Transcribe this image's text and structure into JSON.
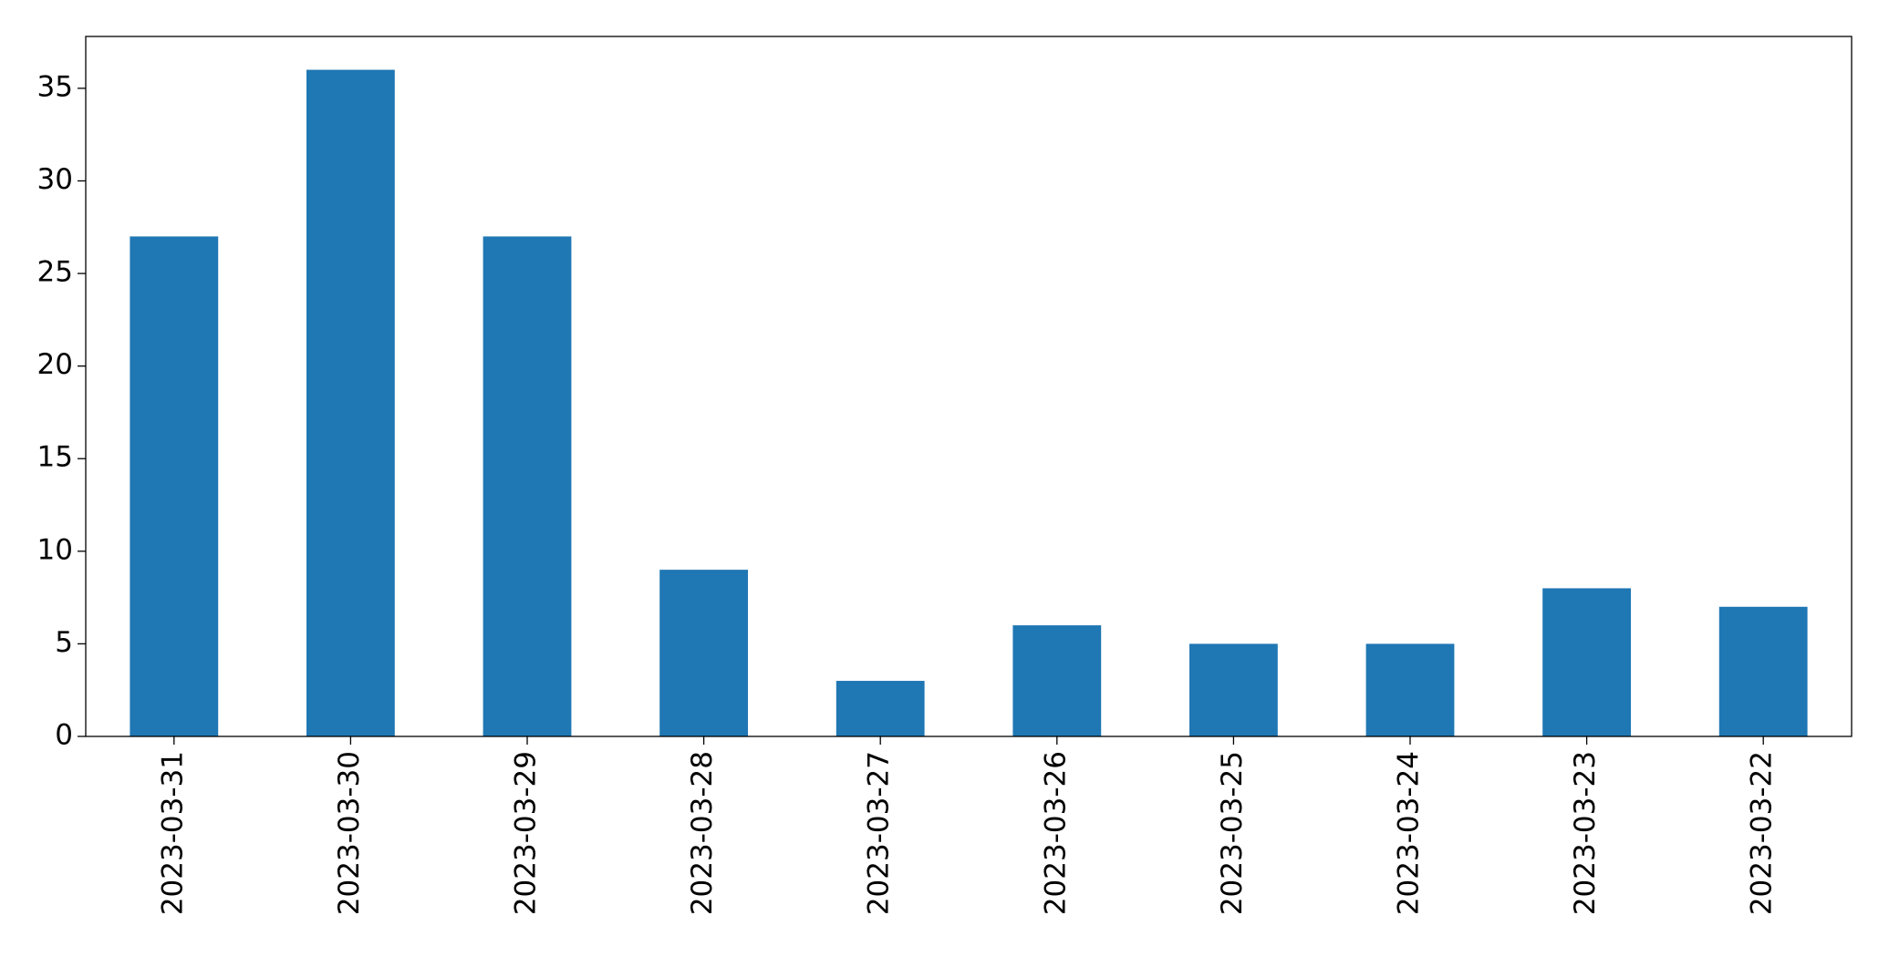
{
  "chart_data": {
    "type": "bar",
    "categories": [
      "2023-03-31",
      "2023-03-30",
      "2023-03-29",
      "2023-03-28",
      "2023-03-27",
      "2023-03-26",
      "2023-03-25",
      "2023-03-24",
      "2023-03-23",
      "2023-03-22"
    ],
    "values": [
      27,
      36,
      27,
      9,
      3,
      6,
      5,
      5,
      8,
      7
    ],
    "color": "#1f77b4",
    "ylim": [
      0,
      37.8
    ],
    "yticks": [
      0,
      5,
      10,
      15,
      20,
      25,
      30,
      35
    ],
    "grid": false
  }
}
